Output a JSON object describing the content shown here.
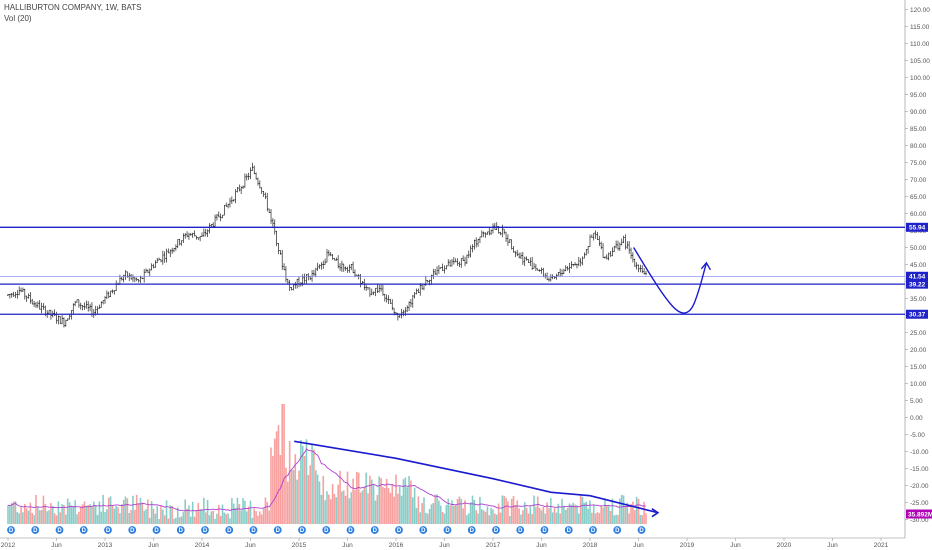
{
  "header": {
    "symbol_line": "HALLIBURTON COMPANY, 1W, BATS",
    "volume_line": "Vol (20)"
  },
  "colors": {
    "bull": "#26a69a",
    "bear": "#ef5350",
    "level_line": "#1e22c8",
    "volume_ma": "#b040d0",
    "annotation": "#1a1ad0"
  },
  "chart_data": {
    "type": "candlestick",
    "title": "HALLIBURTON COMPANY, 1W, BATS",
    "x": [
      "2012",
      "Jun",
      "2013",
      "Jun",
      "2014",
      "Jun",
      "2015",
      "Jun",
      "2016",
      "Jun",
      "2017",
      "Jun",
      "2018",
      "Jun",
      "2019",
      "Jun",
      "2020",
      "Jun",
      "2021"
    ],
    "y_ticks": [
      -30,
      -25,
      -20,
      -15,
      -10,
      -5,
      0,
      5,
      10,
      15,
      20,
      25,
      30,
      35,
      40,
      45,
      50,
      55,
      60,
      65,
      70,
      75,
      80,
      85,
      90,
      95,
      100,
      105,
      110,
      115,
      120
    ],
    "ylim": [
      -31,
      122
    ],
    "grid": false,
    "price_path": [
      {
        "t": 2012.0,
        "p": 36
      },
      {
        "t": 2012.12,
        "p": 37.5
      },
      {
        "t": 2012.25,
        "p": 34
      },
      {
        "t": 2012.45,
        "p": 30
      },
      {
        "t": 2012.58,
        "p": 28
      },
      {
        "t": 2012.7,
        "p": 34
      },
      {
        "t": 2012.88,
        "p": 31
      },
      {
        "t": 2013.0,
        "p": 35
      },
      {
        "t": 2013.2,
        "p": 42
      },
      {
        "t": 2013.35,
        "p": 40
      },
      {
        "t": 2013.5,
        "p": 45
      },
      {
        "t": 2013.7,
        "p": 50
      },
      {
        "t": 2013.85,
        "p": 54
      },
      {
        "t": 2014.0,
        "p": 53
      },
      {
        "t": 2014.25,
        "p": 62
      },
      {
        "t": 2014.45,
        "p": 70
      },
      {
        "t": 2014.52,
        "p": 73
      },
      {
        "t": 2014.62,
        "p": 67
      },
      {
        "t": 2014.75,
        "p": 55
      },
      {
        "t": 2014.8,
        "p": 48
      },
      {
        "t": 2014.9,
        "p": 38
      },
      {
        "t": 2015.0,
        "p": 40
      },
      {
        "t": 2015.15,
        "p": 42
      },
      {
        "t": 2015.3,
        "p": 48
      },
      {
        "t": 2015.4,
        "p": 45
      },
      {
        "t": 2015.55,
        "p": 44
      },
      {
        "t": 2015.7,
        "p": 37
      },
      {
        "t": 2015.85,
        "p": 38
      },
      {
        "t": 2016.0,
        "p": 30
      },
      {
        "t": 2016.12,
        "p": 33
      },
      {
        "t": 2016.3,
        "p": 40
      },
      {
        "t": 2016.45,
        "p": 44
      },
      {
        "t": 2016.7,
        "p": 46
      },
      {
        "t": 2016.85,
        "p": 53
      },
      {
        "t": 2017.0,
        "p": 56
      },
      {
        "t": 2017.12,
        "p": 54
      },
      {
        "t": 2017.25,
        "p": 48
      },
      {
        "t": 2017.45,
        "p": 44
      },
      {
        "t": 2017.6,
        "p": 40
      },
      {
        "t": 2017.75,
        "p": 44
      },
      {
        "t": 2017.9,
        "p": 46
      },
      {
        "t": 2018.0,
        "p": 52
      },
      {
        "t": 2018.05,
        "p": 54
      },
      {
        "t": 2018.15,
        "p": 47
      },
      {
        "t": 2018.3,
        "p": 51
      },
      {
        "t": 2018.35,
        "p": 52
      },
      {
        "t": 2018.45,
        "p": 46
      },
      {
        "t": 2018.55,
        "p": 43
      },
      {
        "t": 2018.58,
        "p": 41.5
      }
    ],
    "levels": [
      {
        "label": "55.94",
        "value": 55.94
      },
      {
        "label": "41.54",
        "value": 41.54
      },
      {
        "label": "39.22",
        "value": 39.22
      },
      {
        "label": "30.37",
        "value": 30.37
      }
    ],
    "projection": [
      {
        "t": 2018.45,
        "p": 50
      },
      {
        "t": 2018.62,
        "p": 42
      },
      {
        "t": 2018.78,
        "p": 35
      },
      {
        "t": 2018.92,
        "p": 30.5
      },
      {
        "t": 2019.04,
        "p": 31
      },
      {
        "t": 2019.12,
        "p": 37
      },
      {
        "t": 2019.2,
        "p": 45.5
      }
    ],
    "volume": {
      "name": "Vol (20)",
      "last_value_label": "35.892M",
      "trend_line": [
        {
          "t": 2014.95,
          "p": -7
        },
        {
          "t": 2016.0,
          "p": -12
        },
        {
          "t": 2017.0,
          "p": -18
        },
        {
          "t": 2017.6,
          "p": -22
        },
        {
          "t": 2018.0,
          "p": -23
        },
        {
          "t": 2018.7,
          "p": -28
        }
      ]
    },
    "dividend_marker": "D"
  }
}
